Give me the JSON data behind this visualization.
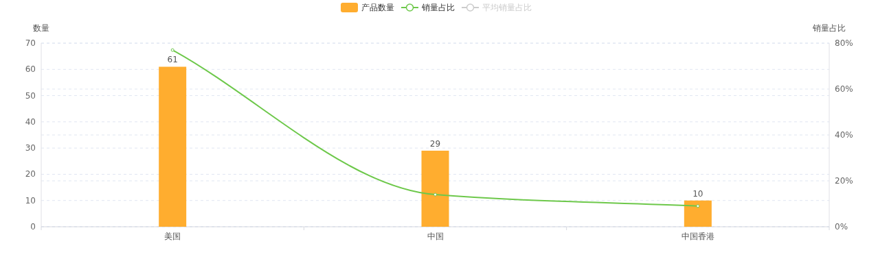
{
  "chart_data": {
    "type": "bar",
    "categories": [
      "美国",
      "中国",
      "中国香港"
    ],
    "ylabel": "数量",
    "y2label": "销量占比",
    "ylim": [
      0,
      70
    ],
    "yticks": [
      0,
      10,
      20,
      30,
      40,
      50,
      60,
      70
    ],
    "y2lim": [
      0,
      80
    ],
    "y2ticks": [
      {
        "value": 0,
        "label": "0%"
      },
      {
        "value": 20,
        "label": "20%"
      },
      {
        "value": 40,
        "label": "40%"
      },
      {
        "value": 60,
        "label": "60%"
      },
      {
        "value": 80,
        "label": "80%"
      }
    ],
    "grid": true,
    "legend": "top",
    "series": [
      {
        "name": "产品数量",
        "color": "#ffad2f",
        "values": [
          61,
          29,
          10
        ],
        "value_labels": [
          "61",
          "29",
          "10"
        ]
      },
      {
        "name": "销量占比",
        "type": "line",
        "axis": "y2",
        "color": "#6dc84a",
        "marker": "circle",
        "values": [
          77,
          14,
          9
        ]
      },
      {
        "name": "平均销量占比",
        "type": "line",
        "axis": "y2",
        "color": "#cccccc",
        "marker": "circle",
        "values": [
          null,
          null,
          null
        ]
      }
    ]
  }
}
